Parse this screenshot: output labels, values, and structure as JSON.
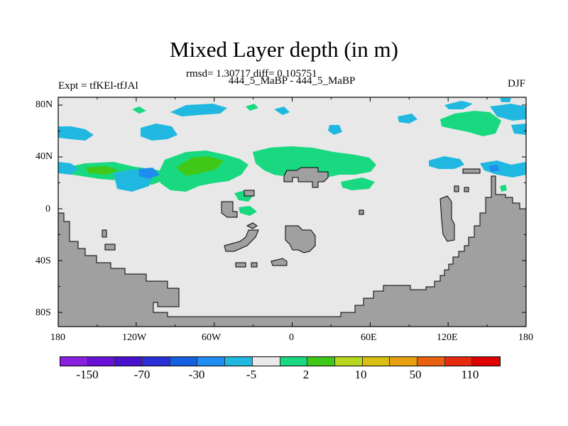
{
  "title": "Mixed Layer depth (in m)",
  "stats": "rmsd= 1.30717 diff= 0.105751",
  "cases": "444_5_MaBP - 444_5_MaBP",
  "expt": "Expt = tfKEl-tfJAl",
  "season": "DJF",
  "y_ticks": [
    "80N",
    "40N",
    "0",
    "40S",
    "80S"
  ],
  "x_ticks": [
    "180",
    "120W",
    "60W",
    "0",
    "60E",
    "120E",
    "180"
  ],
  "legend": {
    "colors": [
      "#8a20e0",
      "#6a10d8",
      "#4a10d0",
      "#2a30d8",
      "#1560e0",
      "#1f8cf0",
      "#20b8e0",
      "#eaeaea",
      "#18d880",
      "#40c818",
      "#b8d820",
      "#d8c010",
      "#e8a010",
      "#e86010",
      "#e82a10",
      "#e00000"
    ],
    "labels": [
      "-150",
      "-70",
      "-30",
      "-5",
      "2",
      "10",
      "50",
      "110"
    ]
  },
  "colors": {
    "ocean_background": "#e8e8e8",
    "land": "#a0a0a0",
    "negative_small": "#20b8e0",
    "negative_mid": "#1f8cf0",
    "positive_small": "#18d880",
    "positive_mid": "#40c818"
  }
}
